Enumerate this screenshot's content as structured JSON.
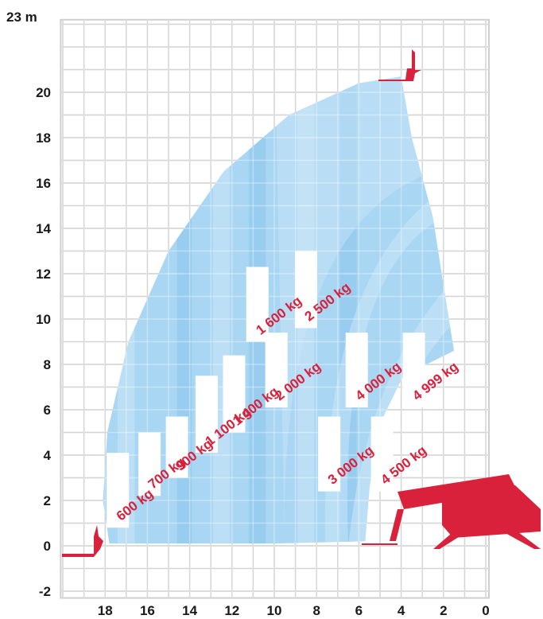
{
  "chart_data": {
    "type": "load-chart",
    "y_unit_label": "23 m",
    "x_ticks": [
      "18",
      "16",
      "14",
      "12",
      "10",
      "8",
      "6",
      "4",
      "2",
      "0"
    ],
    "y_ticks": [
      "20",
      "18",
      "16",
      "14",
      "12",
      "10",
      "8",
      "6",
      "4",
      "2",
      "0",
      "-2"
    ],
    "xlim": [
      20.1,
      0
    ],
    "ylim": [
      -2.3,
      23.2
    ],
    "grid": true,
    "colors": {
      "grid": "#bfbfbf",
      "zone_base": "#a9d6f3",
      "zone_light": "#cde7f7",
      "zone_dark": "#8dc6ec",
      "machine": "#d9213b",
      "text": "#1a1a1a"
    },
    "envelope_outline": [
      [
        17.8,
        0.1
      ],
      [
        18.1,
        2.0
      ],
      [
        17.9,
        5.0
      ],
      [
        16.9,
        9.0
      ],
      [
        15.0,
        13.0
      ],
      [
        12.4,
        16.5
      ],
      [
        9.3,
        19.0
      ],
      [
        6.0,
        20.4
      ],
      [
        4.0,
        20.7
      ],
      [
        3.5,
        18.0
      ],
      [
        2.5,
        14.5
      ],
      [
        2.0,
        11.5
      ],
      [
        1.5,
        8.6
      ],
      [
        3.9,
        7.5
      ],
      [
        5.1,
        5.2
      ],
      [
        5.5,
        2.5
      ],
      [
        5.7,
        0.2
      ],
      [
        10.0,
        0.1
      ]
    ],
    "load_zones": [
      {
        "label": "600 kg",
        "band": [
          0.8,
          4.1
        ],
        "x": 17.4
      },
      {
        "label": "700 kg",
        "band": [
          2.2,
          5.0
        ],
        "x": 15.9
      },
      {
        "label": "900 kg",
        "band": [
          3.0,
          5.7
        ],
        "x": 14.6
      },
      {
        "label": "1 100 kg",
        "band": [
          4.1,
          7.5
        ],
        "x": 13.2
      },
      {
        "label": "1 400 kg",
        "band": [
          5.0,
          8.4
        ],
        "x": 11.9
      },
      {
        "label": "1 600 kg",
        "band": [
          9.0,
          12.3
        ],
        "x": 10.8
      },
      {
        "label": "2 000 kg",
        "band": [
          6.1,
          9.4
        ],
        "x": 9.9
      },
      {
        "label": "2 500 kg",
        "band": [
          9.6,
          13.0
        ],
        "x": 8.5
      },
      {
        "label": "3 000 kg",
        "band": [
          2.4,
          5.7
        ],
        "x": 7.4
      },
      {
        "label": "4 000 kg",
        "band": [
          6.1,
          9.4
        ],
        "x": 6.1
      },
      {
        "label": "4 500 kg",
        "band": [
          2.4,
          5.7
        ],
        "x": 4.9
      },
      {
        "label": "4 999 kg",
        "band": [
          6.1,
          9.4
        ],
        "x": 3.4
      }
    ]
  }
}
